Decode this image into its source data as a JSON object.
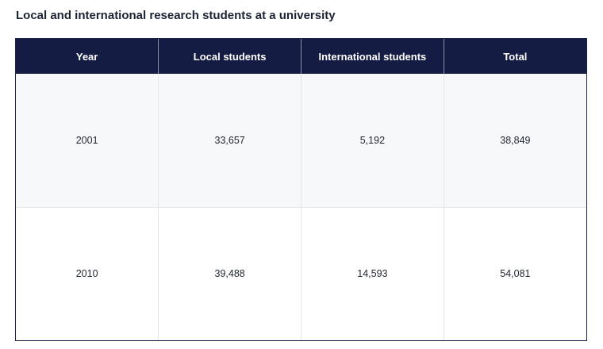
{
  "chart_data": {
    "type": "table",
    "title": "Local and international research students at a university",
    "columns": [
      "Year",
      "Local students",
      "International students",
      "Total"
    ],
    "rows": [
      [
        "2001",
        "33,657",
        "5,192",
        "38,849"
      ],
      [
        "2010",
        "39,488",
        "14,593",
        "54,081"
      ]
    ]
  },
  "colors": {
    "header_bg": "#141c44",
    "header_text": "#ffffff",
    "row_alt_bg": "#f7f8fa"
  }
}
